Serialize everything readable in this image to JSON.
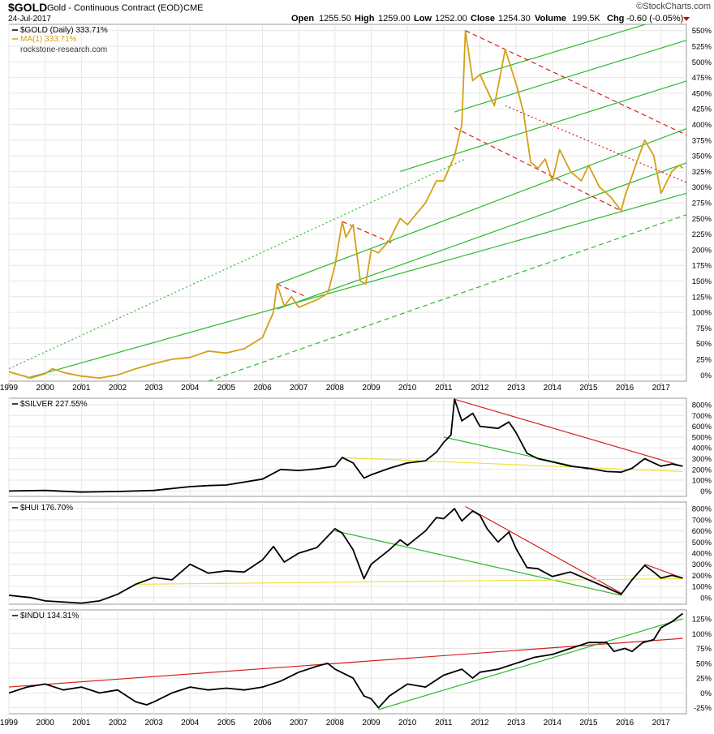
{
  "header": {
    "symbol": "$GOLD",
    "description": "Gold - Continuous Contract (EOD)",
    "exchange": "CME",
    "date": "24-Jul-2017",
    "brand": "©StockCharts.com",
    "ohlc": {
      "open_label": "Open",
      "open": "1255.50",
      "high_label": "High",
      "high": "1259.00",
      "low_label": "Low",
      "low": "1252.00",
      "close_label": "Close",
      "close": "1254.30",
      "volume_label": "Volume",
      "volume": "199.5K",
      "chg_label": "Chg",
      "chg": "-0.60 (-0.05%)"
    }
  },
  "colors": {
    "gold": "#d4a017",
    "black": "#000000",
    "green": "#2eb82e",
    "red": "#d42020",
    "yellow": "#f0e040",
    "grid": "#e6e6e6",
    "chg_negative": "#cc0000"
  },
  "chart_data": [
    {
      "type": "line",
      "symbol": "$GOLD",
      "legend": "$GOLD (Daily) 333.71%",
      "ma_legend": "MA(1) 333.71%",
      "watermark": "rockstone-research.com",
      "yunit": "%",
      "ylim": [
        -10,
        560
      ],
      "yticks": [
        0,
        25,
        50,
        75,
        100,
        125,
        150,
        175,
        200,
        225,
        250,
        275,
        300,
        325,
        350,
        375,
        400,
        425,
        450,
        475,
        500,
        525,
        550
      ],
      "series_color": "gold",
      "points": [
        [
          1999.0,
          5
        ],
        [
          1999.6,
          -5
        ],
        [
          2000.0,
          2
        ],
        [
          2000.2,
          10
        ],
        [
          2000.5,
          4
        ],
        [
          2001.0,
          -2
        ],
        [
          2001.5,
          -5
        ],
        [
          2002.0,
          0
        ],
        [
          2002.5,
          10
        ],
        [
          2003.0,
          18
        ],
        [
          2003.5,
          25
        ],
        [
          2004.0,
          28
        ],
        [
          2004.5,
          38
        ],
        [
          2005.0,
          35
        ],
        [
          2005.5,
          42
        ],
        [
          2006.0,
          60
        ],
        [
          2006.3,
          100
        ],
        [
          2006.4,
          145
        ],
        [
          2006.6,
          110
        ],
        [
          2006.8,
          125
        ],
        [
          2007.0,
          108
        ],
        [
          2007.5,
          120
        ],
        [
          2007.8,
          130
        ],
        [
          2008.0,
          175
        ],
        [
          2008.2,
          245
        ],
        [
          2008.3,
          220
        ],
        [
          2008.5,
          240
        ],
        [
          2008.7,
          150
        ],
        [
          2008.85,
          145
        ],
        [
          2009.0,
          200
        ],
        [
          2009.2,
          195
        ],
        [
          2009.5,
          215
        ],
        [
          2009.8,
          250
        ],
        [
          2010.0,
          240
        ],
        [
          2010.5,
          275
        ],
        [
          2010.8,
          310
        ],
        [
          2011.0,
          310
        ],
        [
          2011.3,
          350
        ],
        [
          2011.5,
          400
        ],
        [
          2011.6,
          550
        ],
        [
          2011.8,
          470
        ],
        [
          2012.0,
          480
        ],
        [
          2012.4,
          430
        ],
        [
          2012.7,
          520
        ],
        [
          2013.0,
          465
        ],
        [
          2013.2,
          420
        ],
        [
          2013.4,
          340
        ],
        [
          2013.6,
          330
        ],
        [
          2013.8,
          345
        ],
        [
          2014.0,
          310
        ],
        [
          2014.2,
          360
        ],
        [
          2014.5,
          325
        ],
        [
          2014.8,
          310
        ],
        [
          2015.0,
          335
        ],
        [
          2015.3,
          300
        ],
        [
          2015.6,
          285
        ],
        [
          2015.9,
          262
        ],
        [
          2016.0,
          285
        ],
        [
          2016.3,
          335
        ],
        [
          2016.55,
          375
        ],
        [
          2016.8,
          350
        ],
        [
          2017.0,
          290
        ],
        [
          2017.3,
          325
        ],
        [
          2017.5,
          335
        ],
        [
          2017.6,
          330
        ]
      ],
      "lines": [
        {
          "color": "green",
          "dash": "solid",
          "x1": 1999.5,
          "y1": -5,
          "x2": 2018.0,
          "y2": 295
        },
        {
          "color": "green",
          "dash": "solid",
          "x1": 2006.4,
          "y1": 145,
          "x2": 2018.0,
          "y2": 400
        },
        {
          "color": "green",
          "dash": "solid",
          "x1": 2009.8,
          "y1": 325,
          "x2": 2018.0,
          "y2": 475
        },
        {
          "color": "green",
          "dash": "solid",
          "x1": 2011.3,
          "y1": 420,
          "x2": 2018.0,
          "y2": 540
        },
        {
          "color": "green",
          "dash": "solid",
          "x1": 2012.0,
          "y1": 480,
          "x2": 2018.0,
          "y2": 585
        },
        {
          "color": "green",
          "dash": "dotted",
          "x1": 1999.0,
          "y1": 10,
          "x2": 2011.6,
          "y2": 345
        },
        {
          "color": "green",
          "dash": "dashed",
          "x1": 2004.5,
          "y1": -10,
          "x2": 2018.0,
          "y2": 262
        },
        {
          "color": "green",
          "dash": "solid",
          "x1": 2006.4,
          "y1": 105,
          "x2": 2018.0,
          "y2": 345
        },
        {
          "color": "red",
          "dash": "dashed",
          "x1": 2011.6,
          "y1": 550,
          "x2": 2018.0,
          "y2": 375
        },
        {
          "color": "red",
          "dash": "dotted",
          "x1": 2012.7,
          "y1": 430,
          "x2": 2018.0,
          "y2": 300
        },
        {
          "color": "red",
          "dash": "dashed",
          "x1": 2011.3,
          "y1": 395,
          "x2": 2015.9,
          "y2": 262
        },
        {
          "color": "red",
          "dash": "dashed",
          "x1": 2006.4,
          "y1": 145,
          "x2": 2007.2,
          "y2": 125
        },
        {
          "color": "red",
          "dash": "dashed",
          "x1": 2008.2,
          "y1": 245,
          "x2": 2009.6,
          "y2": 210
        }
      ]
    },
    {
      "type": "line",
      "symbol": "$SILVER",
      "legend": "$SILVER 227.55%",
      "yunit": "%",
      "ylim": [
        -50,
        860
      ],
      "yticks": [
        0,
        100,
        200,
        300,
        400,
        500,
        600,
        700,
        800
      ],
      "series_color": "black",
      "points": [
        [
          1999.0,
          0
        ],
        [
          2000.0,
          5
        ],
        [
          2001.0,
          -10
        ],
        [
          2002.0,
          -5
        ],
        [
          2003.0,
          5
        ],
        [
          2004.0,
          40
        ],
        [
          2004.5,
          50
        ],
        [
          2005.0,
          55
        ],
        [
          2006.0,
          110
        ],
        [
          2006.5,
          200
        ],
        [
          2007.0,
          190
        ],
        [
          2007.5,
          205
        ],
        [
          2008.0,
          230
        ],
        [
          2008.2,
          310
        ],
        [
          2008.5,
          260
        ],
        [
          2008.8,
          120
        ],
        [
          2009.0,
          150
        ],
        [
          2009.5,
          210
        ],
        [
          2010.0,
          260
        ],
        [
          2010.5,
          280
        ],
        [
          2010.8,
          360
        ],
        [
          2011.0,
          450
        ],
        [
          2011.2,
          520
        ],
        [
          2011.3,
          850
        ],
        [
          2011.5,
          650
        ],
        [
          2011.8,
          720
        ],
        [
          2012.0,
          600
        ],
        [
          2012.5,
          580
        ],
        [
          2012.8,
          640
        ],
        [
          2013.0,
          540
        ],
        [
          2013.3,
          350
        ],
        [
          2013.6,
          300
        ],
        [
          2014.0,
          270
        ],
        [
          2014.5,
          230
        ],
        [
          2015.0,
          210
        ],
        [
          2015.5,
          180
        ],
        [
          2015.9,
          175
        ],
        [
          2016.2,
          210
        ],
        [
          2016.55,
          300
        ],
        [
          2016.8,
          260
        ],
        [
          2017.0,
          230
        ],
        [
          2017.3,
          250
        ],
        [
          2017.6,
          230
        ]
      ],
      "lines": [
        {
          "color": "red",
          "dash": "solid",
          "x1": 2011.3,
          "y1": 850,
          "x2": 2017.6,
          "y2": 230
        },
        {
          "color": "green",
          "dash": "solid",
          "x1": 2011.0,
          "y1": 500,
          "x2": 2015.0,
          "y2": 200
        },
        {
          "color": "yellow",
          "dash": "solid",
          "x1": 2008.2,
          "y1": 310,
          "x2": 2017.6,
          "y2": 180
        }
      ]
    },
    {
      "type": "line",
      "symbol": "$HUI",
      "legend": "$HUI 176.70%",
      "yunit": "%",
      "ylim": [
        -60,
        860
      ],
      "yticks": [
        0,
        100,
        200,
        300,
        400,
        500,
        600,
        700,
        800
      ],
      "series_color": "black",
      "points": [
        [
          1999.0,
          20
        ],
        [
          1999.6,
          0
        ],
        [
          2000.0,
          -30
        ],
        [
          2001.0,
          -50
        ],
        [
          2001.5,
          -30
        ],
        [
          2002.0,
          30
        ],
        [
          2002.5,
          120
        ],
        [
          2003.0,
          180
        ],
        [
          2003.5,
          160
        ],
        [
          2004.0,
          300
        ],
        [
          2004.5,
          220
        ],
        [
          2005.0,
          240
        ],
        [
          2005.5,
          230
        ],
        [
          2006.0,
          340
        ],
        [
          2006.3,
          460
        ],
        [
          2006.6,
          320
        ],
        [
          2007.0,
          400
        ],
        [
          2007.5,
          450
        ],
        [
          2008.0,
          620
        ],
        [
          2008.2,
          580
        ],
        [
          2008.5,
          430
        ],
        [
          2008.8,
          170
        ],
        [
          2009.0,
          300
        ],
        [
          2009.5,
          430
        ],
        [
          2009.8,
          520
        ],
        [
          2010.0,
          470
        ],
        [
          2010.5,
          600
        ],
        [
          2010.8,
          720
        ],
        [
          2011.0,
          710
        ],
        [
          2011.3,
          800
        ],
        [
          2011.5,
          690
        ],
        [
          2011.8,
          780
        ],
        [
          2012.0,
          740
        ],
        [
          2012.2,
          620
        ],
        [
          2012.5,
          500
        ],
        [
          2012.8,
          590
        ],
        [
          2013.0,
          440
        ],
        [
          2013.3,
          270
        ],
        [
          2013.6,
          260
        ],
        [
          2014.0,
          190
        ],
        [
          2014.5,
          230
        ],
        [
          2015.0,
          160
        ],
        [
          2015.5,
          90
        ],
        [
          2015.9,
          30
        ],
        [
          2016.2,
          160
        ],
        [
          2016.55,
          290
        ],
        [
          2016.8,
          230
        ],
        [
          2017.0,
          175
        ],
        [
          2017.3,
          200
        ],
        [
          2017.6,
          175
        ]
      ],
      "lines": [
        {
          "color": "red",
          "dash": "solid",
          "x1": 2011.6,
          "y1": 820,
          "x2": 2015.9,
          "y2": 40
        },
        {
          "color": "red",
          "dash": "solid",
          "x1": 2016.55,
          "y1": 300,
          "x2": 2017.6,
          "y2": 175
        },
        {
          "color": "green",
          "dash": "solid",
          "x1": 2008.0,
          "y1": 600,
          "x2": 2015.9,
          "y2": 20
        },
        {
          "color": "yellow",
          "dash": "solid",
          "x1": 2002.5,
          "y1": 120,
          "x2": 2017.6,
          "y2": 170
        }
      ]
    },
    {
      "type": "line",
      "symbol": "$INDU",
      "legend": "$INDU 134.31%",
      "yunit": "%",
      "ylim": [
        -35,
        140
      ],
      "yticks": [
        -25,
        0,
        25,
        50,
        75,
        100,
        125
      ],
      "series_color": "black",
      "points": [
        [
          1999.0,
          0
        ],
        [
          1999.5,
          10
        ],
        [
          2000.0,
          15
        ],
        [
          2000.5,
          5
        ],
        [
          2001.0,
          10
        ],
        [
          2001.5,
          0
        ],
        [
          2002.0,
          5
        ],
        [
          2002.5,
          -15
        ],
        [
          2002.8,
          -20
        ],
        [
          2003.0,
          -15
        ],
        [
          2003.5,
          0
        ],
        [
          2004.0,
          10
        ],
        [
          2004.5,
          5
        ],
        [
          2005.0,
          8
        ],
        [
          2005.5,
          5
        ],
        [
          2006.0,
          10
        ],
        [
          2006.5,
          20
        ],
        [
          2007.0,
          35
        ],
        [
          2007.5,
          45
        ],
        [
          2007.8,
          50
        ],
        [
          2008.0,
          40
        ],
        [
          2008.5,
          25
        ],
        [
          2008.8,
          -5
        ],
        [
          2009.0,
          -10
        ],
        [
          2009.2,
          -25
        ],
        [
          2009.5,
          -5
        ],
        [
          2010.0,
          15
        ],
        [
          2010.5,
          10
        ],
        [
          2011.0,
          30
        ],
        [
          2011.5,
          40
        ],
        [
          2011.8,
          25
        ],
        [
          2012.0,
          35
        ],
        [
          2012.5,
          40
        ],
        [
          2013.0,
          50
        ],
        [
          2013.5,
          60
        ],
        [
          2014.0,
          65
        ],
        [
          2014.5,
          75
        ],
        [
          2015.0,
          85
        ],
        [
          2015.5,
          85
        ],
        [
          2015.7,
          70
        ],
        [
          2016.0,
          75
        ],
        [
          2016.2,
          70
        ],
        [
          2016.5,
          85
        ],
        [
          2016.8,
          90
        ],
        [
          2017.0,
          110
        ],
        [
          2017.3,
          120
        ],
        [
          2017.6,
          134
        ]
      ],
      "lines": [
        {
          "color": "red",
          "dash": "solid",
          "x1": 1999.0,
          "y1": 10,
          "x2": 2017.6,
          "y2": 92
        },
        {
          "color": "green",
          "dash": "solid",
          "x1": 2009.2,
          "y1": -28,
          "x2": 2017.6,
          "y2": 125
        }
      ]
    }
  ],
  "x_axis": {
    "xlim": [
      1999,
      2017.7
    ],
    "tick_labels": [
      "1999",
      "2000",
      "2001",
      "2002",
      "2003",
      "2004",
      "2005",
      "2006",
      "2007",
      "2008",
      "2009",
      "2010",
      "2011",
      "2012",
      "2013",
      "2014",
      "2015",
      "2016",
      "2017"
    ]
  }
}
